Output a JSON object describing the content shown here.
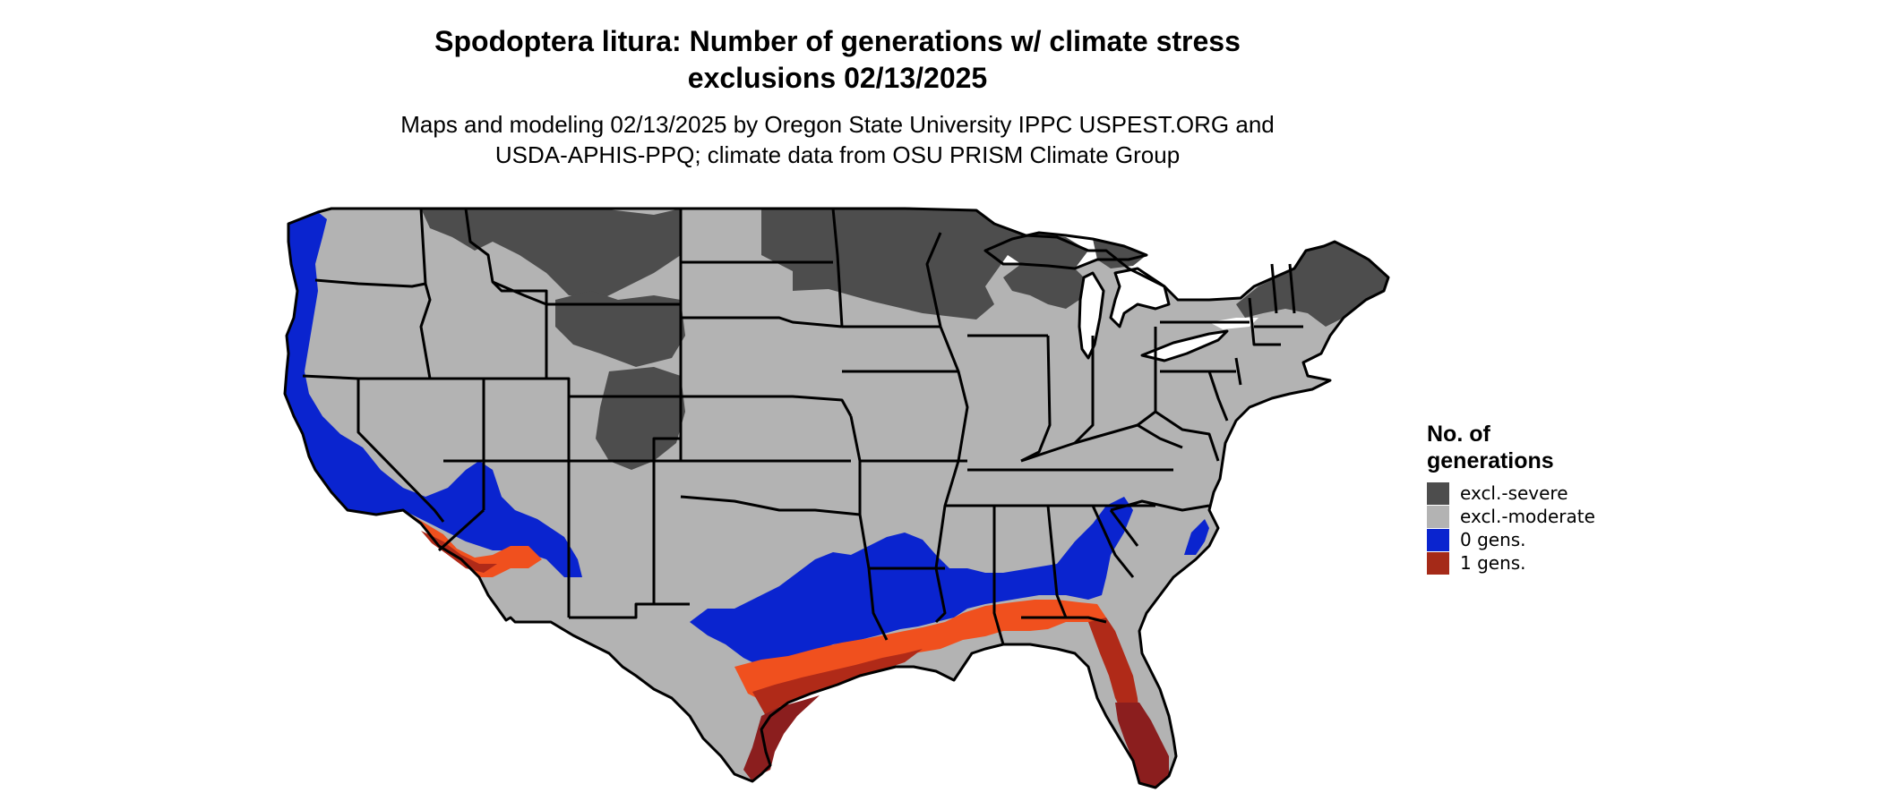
{
  "title": {
    "line1": "Spodoptera litura: Number of generations w/ climate stress",
    "line2": "exclusions 02/13/2025"
  },
  "subtitle": {
    "line1": "Maps and modeling 02/13/2025 by Oregon State University IPPC USPEST.ORG and",
    "line2": "USDA-APHIS-PPQ; climate data from OSU PRISM Climate Group"
  },
  "legend": {
    "title_line1": "No. of",
    "title_line2": "generations",
    "items": [
      {
        "label": "excl.-severe",
        "color": "#4d4d4d"
      },
      {
        "label": "excl.-moderate",
        "color": "#b3b3b3"
      },
      {
        "label": "0 gens.",
        "color": "#0a24cf"
      },
      {
        "label": "1 gens.",
        "color": "#a52a18"
      }
    ]
  },
  "map_colors": {
    "severe": "#4d4d4d",
    "moderate": "#b3b3b3",
    "zero_gens": "#0a24cf",
    "one_gen_dark": "#8b1e1e",
    "one_gen_mid": "#b02a18",
    "one_gen_light": "#f0501e",
    "boundary": "#000000",
    "water": "#ffffff"
  }
}
